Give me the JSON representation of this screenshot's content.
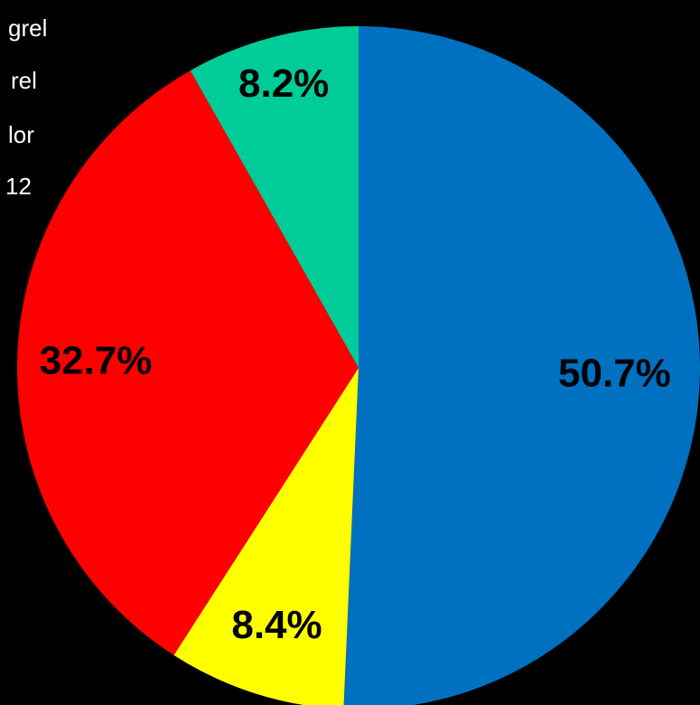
{
  "chart_data": {
    "type": "pie",
    "start_angle_deg": 0,
    "direction": "clockwise",
    "slices": [
      {
        "label": "",
        "value": 50.7,
        "display": "50.7%",
        "color": "#0070C0"
      },
      {
        "label": "",
        "value": 8.4,
        "display": "8.4%",
        "color": "#FFFF00"
      },
      {
        "label": "",
        "value": 32.7,
        "display": "32.7%",
        "color": "#FF0000"
      },
      {
        "label": "",
        "value": 8.2,
        "display": "8.2%",
        "color": "#00CC99"
      }
    ],
    "legend": {
      "placement": "top-left (clipped)",
      "entries": [
        "grel",
        "rel",
        "lor",
        "12"
      ]
    },
    "label_color": "#000000",
    "background": "#000000"
  }
}
